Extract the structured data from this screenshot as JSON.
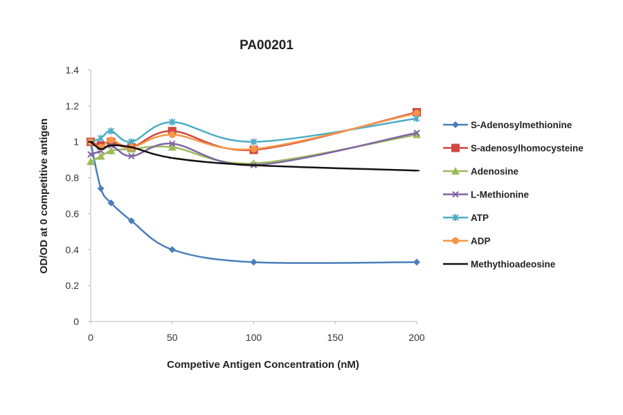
{
  "chart_data": {
    "type": "line",
    "title": "PA00201",
    "xlabel": "Competive Antigen Concentration (nM)",
    "ylabel": "OD/OD at 0 competitive antigen",
    "xlim": [
      0,
      200
    ],
    "ylim": [
      0,
      1.4
    ],
    "xticks": [
      "0",
      "50",
      "100",
      "150",
      "200"
    ],
    "yticks": [
      "0",
      "0.2",
      "0.4",
      "0.6",
      "0.8",
      "1",
      "1.2",
      "1.4"
    ],
    "grid": false,
    "legend": "right",
    "smoothed": true,
    "x": [
      0,
      6.25,
      12.5,
      25,
      50,
      100,
      200
    ],
    "series": [
      {
        "name": "S-Adenosylmethionine",
        "color": "#4a7ebb",
        "marker": "diamond",
        "values": [
          1.0,
          0.74,
          0.66,
          0.56,
          0.4,
          0.33,
          0.33
        ]
      },
      {
        "name": "S-adenosylhomocysteine",
        "color": "#d0473f",
        "marker": "square",
        "values": [
          1.0,
          0.98,
          1.0,
          0.97,
          1.06,
          0.955,
          1.165
        ]
      },
      {
        "name": "Adenosine",
        "color": "#9bbb59",
        "marker": "triangle",
        "values": [
          0.89,
          0.92,
          0.95,
          0.96,
          0.97,
          0.88,
          1.04
        ]
      },
      {
        "name": "L-Methionine",
        "color": "#8064a2",
        "marker": "x",
        "values": [
          0.93,
          0.95,
          0.98,
          0.92,
          0.99,
          0.87,
          1.05
        ]
      },
      {
        "name": "ATP",
        "color": "#4bacc6",
        "marker": "star",
        "values": [
          1.0,
          1.02,
          1.06,
          1.0,
          1.11,
          1.0,
          1.13
        ]
      },
      {
        "name": "ADP",
        "color": "#f79646",
        "marker": "circle",
        "values": [
          1.0,
          0.97,
          1.01,
          0.97,
          1.04,
          0.96,
          1.16
        ]
      },
      {
        "name": "Methythioadeosine",
        "color": "#111111",
        "marker": "plus",
        "values": [
          1.0,
          0.96,
          0.98,
          0.97,
          0.91,
          0.87,
          0.84
        ]
      }
    ]
  }
}
